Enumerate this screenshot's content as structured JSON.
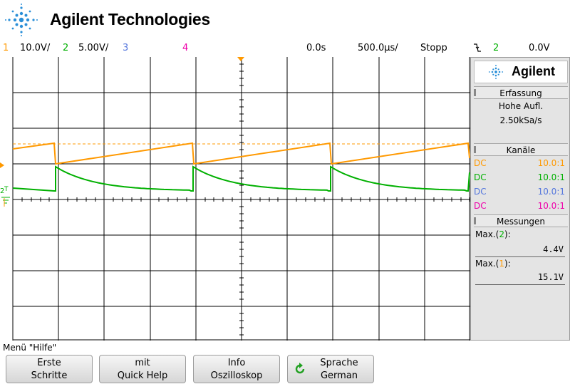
{
  "header": {
    "brand": "Agilent Technologies"
  },
  "status": {
    "ch1_num": "1",
    "ch1_scale": "10.0V/",
    "ch2_num": "2",
    "ch2_scale": "5.00V/",
    "ch3_num": "3",
    "ch4_num": "4",
    "delay": "0.0s",
    "timebase": "500.0µs/",
    "run_state": "Stopp",
    "trigger_channel": "2",
    "trigger_level": "0.0V",
    "trigger_slope_icon": "falling-edge-icon"
  },
  "panel": {
    "brand": "Agilent",
    "acquisition_header": "Erfassung",
    "acquisition_mode": "Hohe Aufl.",
    "sample_rate": "2.50kSa/s",
    "channels_header": "Kanäle",
    "channels": [
      {
        "coupling": "DC",
        "probe": "10.0:1",
        "color": "#ff9900"
      },
      {
        "coupling": "DC",
        "probe": "10.0:1",
        "color": "#00b000"
      },
      {
        "coupling": "DC",
        "probe": "10.0:1",
        "color": "#5577dd"
      },
      {
        "coupling": "DC",
        "probe": "10.0:1",
        "color": "#ee00aa"
      }
    ],
    "measurements_header": "Messungen",
    "measurements": [
      {
        "label_prefix": "Max.(",
        "label_channel": "2",
        "label_suffix": "):",
        "value": "4.4V",
        "channel_color": "#00b000"
      },
      {
        "label_prefix": "Max.(",
        "label_channel": "1",
        "label_suffix": "):",
        "value": "15.1V",
        "channel_color": "#ff9900"
      }
    ]
  },
  "menu": {
    "title": "Menü \"Hilfe\"",
    "softkeys": [
      {
        "line1": "Erste",
        "line2": "Schritte"
      },
      {
        "line1": "mit",
        "line2": "Quick Help"
      },
      {
        "line1": "Info",
        "line2": "Oszilloskop"
      },
      {
        "line1": "Sprache",
        "line2": "German"
      }
    ]
  },
  "colors": {
    "ch1": "#ff9900",
    "ch2": "#00b000",
    "ch3": "#5577dd",
    "ch4": "#ee00aa",
    "grid": "#000000"
  }
}
